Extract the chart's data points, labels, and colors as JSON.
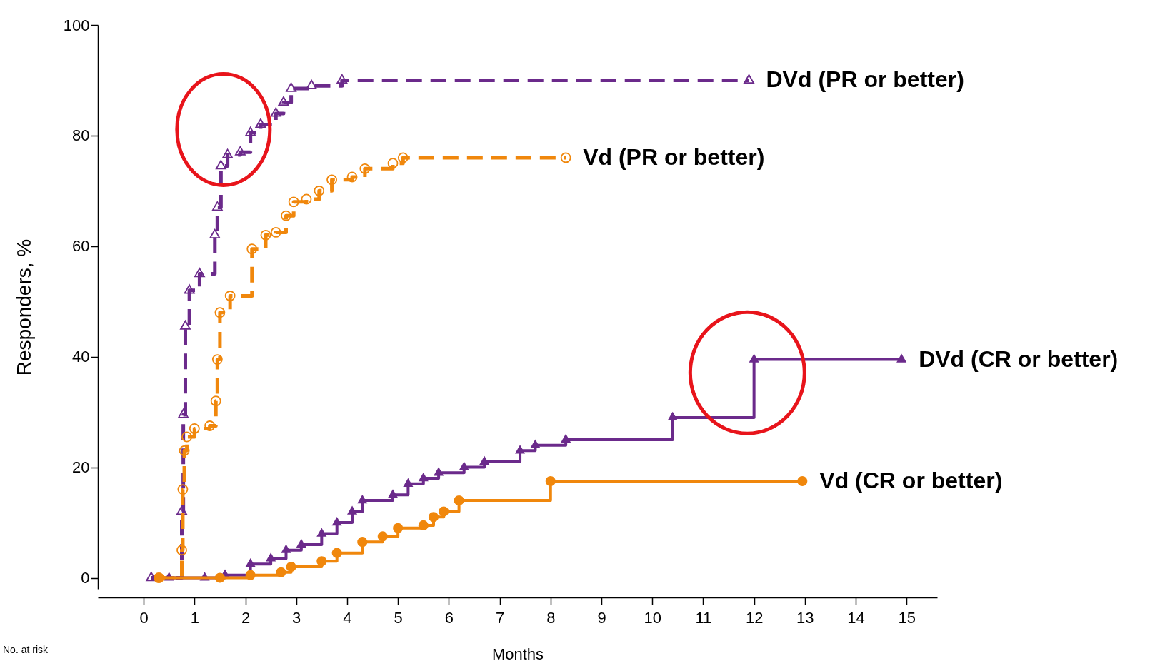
{
  "chart_data": {
    "type": "step",
    "xlabel": "Months",
    "ylabel": "Responders, %",
    "xlim": [
      -0.9,
      15.6
    ],
    "ylim": [
      -2,
      100
    ],
    "xticks": [
      0,
      1,
      2,
      3,
      4,
      5,
      6,
      7,
      8,
      9,
      10,
      11,
      12,
      13,
      14,
      15
    ],
    "yticks": [
      0,
      20,
      40,
      60,
      80,
      100
    ],
    "grid": false,
    "annotations": [
      "No. at risk"
    ],
    "series": [
      {
        "name": "DVd (PR or better)",
        "color": "#6b2a8b",
        "marker": "triangle",
        "line_style": "dashed",
        "x": [
          0.15,
          0.75,
          0.78,
          0.82,
          0.9,
          1.1,
          1.4,
          1.45,
          1.52,
          1.65,
          1.9,
          2.1,
          2.3,
          2.6,
          2.75,
          2.9,
          3.3,
          3.9,
          11.9
        ],
        "values": [
          0,
          12,
          29.5,
          45.5,
          52,
          55,
          62,
          67,
          74.5,
          76.5,
          77,
          80.5,
          82,
          84,
          86,
          88.5,
          89,
          90,
          90
        ]
      },
      {
        "name": "Vd (PR or better)",
        "color": "#f0870c",
        "marker": "circle",
        "line_style": "dashed",
        "x": [
          0.3,
          0.75,
          0.77,
          0.8,
          0.85,
          1.0,
          1.3,
          1.42,
          1.45,
          1.5,
          1.7,
          2.13,
          2.4,
          2.6,
          2.8,
          2.95,
          3.2,
          3.45,
          3.7,
          4.1,
          4.35,
          4.9,
          5.1,
          8.3
        ],
        "values": [
          0,
          5,
          16,
          23,
          25.5,
          27,
          27.5,
          32,
          39.5,
          48,
          51,
          59.5,
          62,
          62.5,
          65.5,
          68,
          68.5,
          70,
          72,
          72.5,
          74,
          75,
          76,
          76
        ]
      },
      {
        "name": "DVd (CR or better)",
        "color": "#6b2a8b",
        "marker": "triangle",
        "line_style": "solid",
        "x": [
          0.5,
          1.2,
          1.6,
          2.1,
          2.5,
          2.8,
          3.1,
          3.5,
          3.8,
          4.1,
          4.3,
          4.9,
          5.2,
          5.5,
          5.8,
          6.3,
          6.7,
          7.4,
          7.7,
          8.3,
          10.4,
          12.0,
          14.9
        ],
        "values": [
          0,
          0,
          0.5,
          2.5,
          3.5,
          5,
          6,
          8,
          10,
          12,
          14,
          15,
          17,
          18,
          19,
          20,
          21,
          23,
          24,
          25,
          29,
          39.5,
          39.5
        ]
      },
      {
        "name": "Vd (CR or better)",
        "color": "#f0870c",
        "marker": "circle",
        "line_style": "solid",
        "x": [
          0.3,
          1.5,
          2.1,
          2.7,
          2.9,
          3.5,
          3.8,
          4.3,
          4.7,
          5.0,
          5.5,
          5.7,
          5.9,
          6.2,
          8.0,
          12.95
        ],
        "values": [
          0,
          0,
          0.5,
          1,
          2,
          3,
          4.5,
          6.5,
          7.5,
          9,
          9.5,
          11,
          12,
          14,
          17.5,
          17.5
        ]
      }
    ]
  }
}
